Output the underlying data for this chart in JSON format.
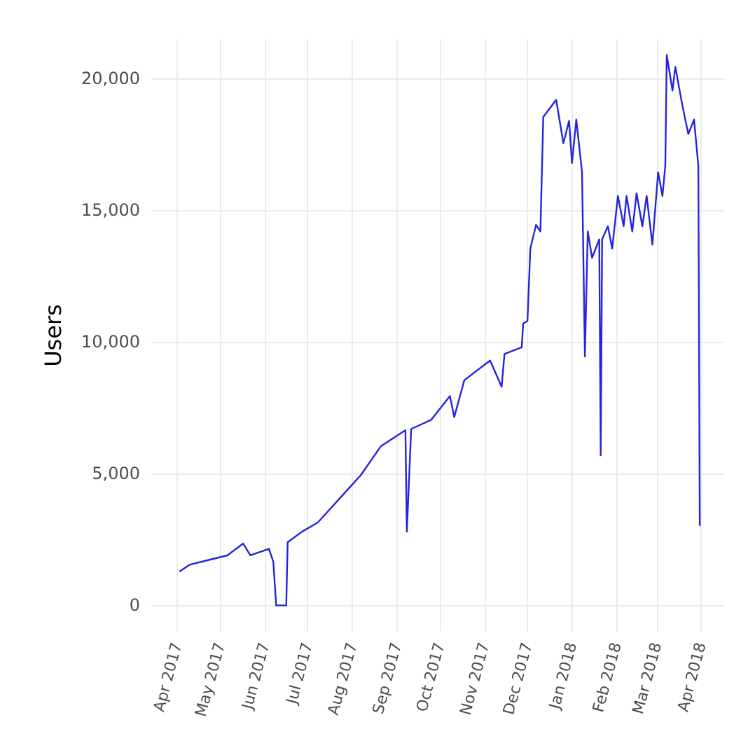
{
  "chart_data": {
    "type": "line",
    "ylabel": "Users",
    "x": [
      "2017-04-03",
      "2017-04-10",
      "2017-04-21",
      "2017-05-06",
      "2017-05-17",
      "2017-05-22",
      "2017-06-04",
      "2017-06-07",
      "2017-06-09",
      "2017-06-16",
      "2017-06-17",
      "2017-06-27",
      "2017-07-08",
      "2017-07-23",
      "2017-08-07",
      "2017-08-21",
      "2017-09-07",
      "2017-09-08",
      "2017-09-11",
      "2017-09-25",
      "2017-10-08",
      "2017-10-11",
      "2017-10-18",
      "2017-11-05",
      "2017-11-13",
      "2017-11-15",
      "2017-11-27",
      "2017-11-28",
      "2017-12-01",
      "2017-12-03",
      "2017-12-07",
      "2017-12-10",
      "2017-12-12",
      "2017-12-21",
      "2017-12-26",
      "2017-12-30",
      "2018-01-01",
      "2018-01-04",
      "2018-01-08",
      "2018-01-10",
      "2018-01-12",
      "2018-01-15",
      "2018-01-20",
      "2018-01-21",
      "2018-01-22",
      "2018-01-26",
      "2018-01-29",
      "2018-02-02",
      "2018-02-06",
      "2018-02-08",
      "2018-02-12",
      "2018-02-15",
      "2018-02-19",
      "2018-02-22",
      "2018-02-26",
      "2018-03-02",
      "2018-03-05",
      "2018-03-07",
      "2018-03-08",
      "2018-03-12",
      "2018-03-14",
      "2018-03-19",
      "2018-03-23",
      "2018-03-27",
      "2018-03-30",
      "2018-03-31"
    ],
    "series": [
      {
        "color": "#2424e0",
        "values": [
          1300,
          1550,
          1700,
          1900,
          2350,
          1900,
          2150,
          1650,
          0,
          0,
          2400,
          2800,
          3150,
          4050,
          4950,
          6050,
          6650,
          2800,
          6700,
          7050,
          7950,
          7150,
          8550,
          9300,
          8300,
          9550,
          9800,
          10700,
          10800,
          13550,
          14450,
          14200,
          18550,
          19200,
          17550,
          18400,
          16800,
          18450,
          16450,
          9450,
          14200,
          13200,
          13900,
          5700,
          13900,
          14400,
          13550,
          15550,
          14400,
          15550,
          14200,
          15650,
          14400,
          15550,
          13700,
          16450,
          15550,
          16700,
          20900,
          19550,
          20450,
          18950,
          17900,
          18450,
          16700,
          3050
        ]
      }
    ],
    "xlim": [
      "2017-03-14",
      "2018-04-17"
    ],
    "xticks": [
      {
        "value": "2017-04-01",
        "label": "Apr 2017"
      },
      {
        "value": "2017-05-01",
        "label": "May 2017"
      },
      {
        "value": "2017-06-01",
        "label": "Jun 2017"
      },
      {
        "value": "2017-07-01",
        "label": "Jul 2017"
      },
      {
        "value": "2017-08-01",
        "label": "Aug 2017"
      },
      {
        "value": "2017-09-01",
        "label": "Sep 2017"
      },
      {
        "value": "2017-10-01",
        "label": "Oct 2017"
      },
      {
        "value": "2017-11-01",
        "label": "Nov 2017"
      },
      {
        "value": "2017-12-01",
        "label": "Dec 2017"
      },
      {
        "value": "2018-01-01",
        "label": "Jan 2018"
      },
      {
        "value": "2018-02-01",
        "label": "Feb 2018"
      },
      {
        "value": "2018-03-01",
        "label": "Mar 2018"
      },
      {
        "value": "2018-04-01",
        "label": "Apr 2018"
      }
    ],
    "ylim": [
      -1000,
      21500
    ],
    "yticks": [
      0,
      {
        "value": 5000,
        "label": "5,000"
      },
      {
        "value": 10000,
        "label": "10,000"
      },
      {
        "value": 15000,
        "label": "15,000"
      },
      {
        "value": 20000,
        "label": "20,000"
      }
    ],
    "grid": true,
    "marker": "none",
    "line_style": "solid"
  }
}
